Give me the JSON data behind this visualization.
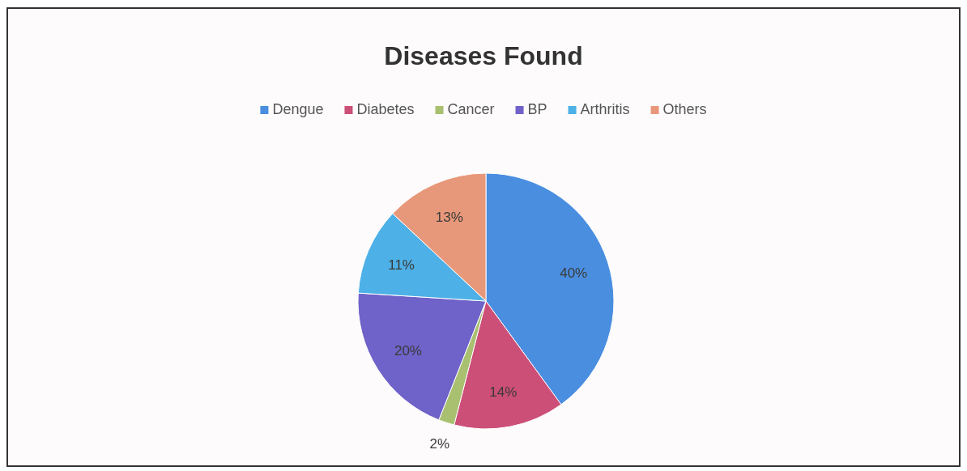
{
  "chart_data": {
    "type": "pie",
    "title": "Diseases Found",
    "categories": [
      "Dengue",
      "Diabetes",
      "Cancer",
      "BP",
      "Arthritis",
      "Others"
    ],
    "values": [
      40,
      14,
      2,
      20,
      11,
      13
    ],
    "colors": [
      "#4a8ee0",
      "#cc4f78",
      "#a8c070",
      "#6f62c8",
      "#4db0e6",
      "#e8987a"
    ],
    "value_labels": [
      "40%",
      "14%",
      "2%",
      "20%",
      "11%",
      "13%"
    ],
    "legend": "top"
  }
}
